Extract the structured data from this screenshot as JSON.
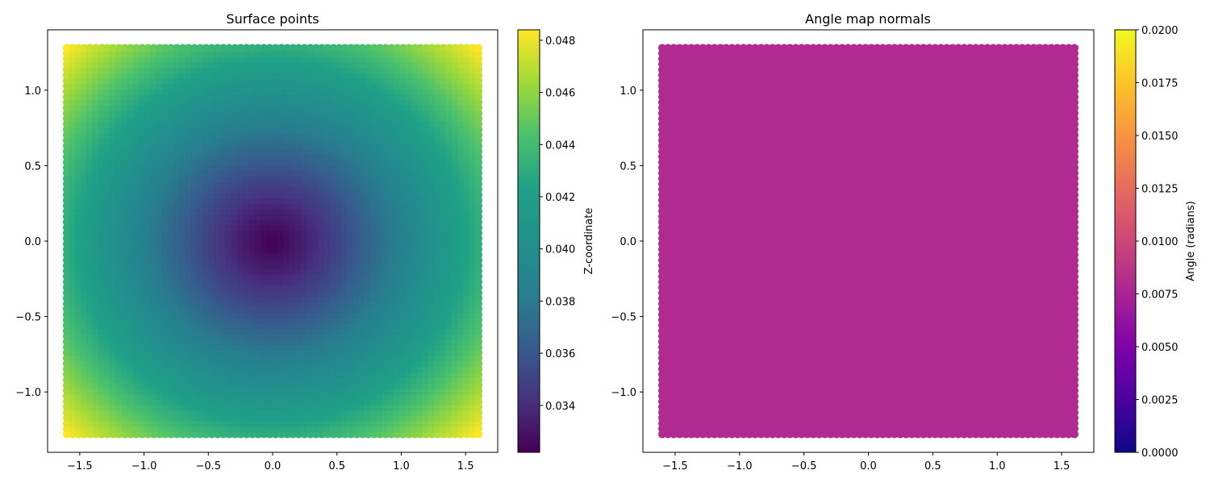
{
  "chart_data": [
    {
      "type": "scatter",
      "title": "Surface points",
      "xlabel": "",
      "ylabel": "",
      "xlim": [
        -1.75,
        1.75
      ],
      "ylim": [
        -1.4,
        1.4
      ],
      "x_ticks": [
        -1.5,
        -1.0,
        -0.5,
        0.0,
        0.5,
        1.0,
        1.5
      ],
      "x_tick_labels": [
        "−1.5",
        "−1.0",
        "−0.5",
        "0.0",
        "0.5",
        "1.0",
        "1.5"
      ],
      "y_ticks": [
        1.0,
        0.5,
        0.0,
        -0.5,
        -1.0
      ],
      "y_tick_labels": [
        "1.0",
        "0.5",
        "0.0",
        "−0.5",
        "−1.0"
      ],
      "x_extent": [
        -1.6,
        1.6
      ],
      "y_extent": [
        -1.28,
        1.28
      ],
      "colormap": "viridis",
      "color_values": "z",
      "z_model": {
        "center": 0.0322,
        "edge_max": 0.0484
      },
      "colorbar": {
        "label": "Z-coordinate",
        "range": [
          0.0322,
          0.0484
        ],
        "ticks": [
          0.034,
          0.036,
          0.038,
          0.04,
          0.042,
          0.044,
          0.046,
          0.048
        ],
        "tick_labels": [
          "0.034",
          "0.036",
          "0.038",
          "0.040",
          "0.042",
          "0.044",
          "0.046",
          "0.048"
        ]
      },
      "grid": false,
      "legend": "none"
    },
    {
      "type": "scatter",
      "title": "Angle map normals",
      "xlabel": "",
      "ylabel": "",
      "xlim": [
        -1.75,
        1.75
      ],
      "ylim": [
        -1.4,
        1.4
      ],
      "x_ticks": [
        -1.5,
        -1.0,
        -0.5,
        0.0,
        0.5,
        1.0,
        1.5
      ],
      "x_tick_labels": [
        "−1.5",
        "−1.0",
        "−0.5",
        "0.0",
        "0.5",
        "1.0",
        "1.5"
      ],
      "y_ticks": [
        1.0,
        0.5,
        0.0,
        -0.5,
        -1.0
      ],
      "y_tick_labels": [
        "1.0",
        "0.5",
        "0.0",
        "−0.5",
        "−1.0"
      ],
      "x_extent": [
        -1.6,
        1.6
      ],
      "y_extent": [
        -1.28,
        1.28
      ],
      "colormap": "plasma",
      "color_values": "constant",
      "constant_value": 0.01,
      "point_color": "#b02a90",
      "colorbar": {
        "label": "Angle (radians)",
        "range": [
          0.0,
          0.02
        ],
        "ticks": [
          0.0,
          0.0025,
          0.005,
          0.0075,
          0.01,
          0.0125,
          0.015,
          0.0175,
          0.02
        ],
        "tick_labels": [
          "0.0000",
          "0.0025",
          "0.0050",
          "0.0075",
          "0.0100",
          "0.0125",
          "0.0150",
          "0.0175",
          "0.0200"
        ]
      },
      "grid": false,
      "legend": "none"
    }
  ]
}
